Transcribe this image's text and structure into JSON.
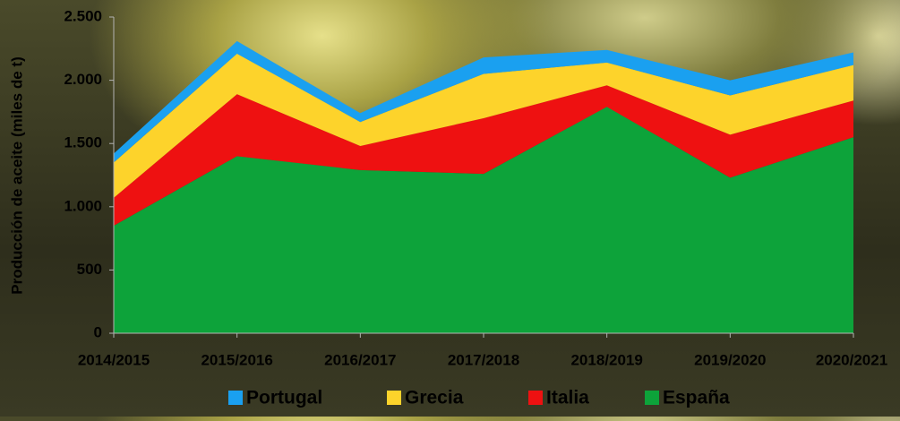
{
  "chart_data": {
    "type": "stacked-area",
    "y_label": "Producción de aceite (miles de t)",
    "categories": [
      "2014/2015",
      "2015/2016",
      "2016/2017",
      "2017/2018",
      "2018/2019",
      "2019/2020",
      "2020/2021"
    ],
    "series": [
      {
        "name": "Portugal",
        "color": "#1aa0f0",
        "values": [
          70,
          100,
          70,
          130,
          100,
          120,
          100
        ]
      },
      {
        "name": "Grecia",
        "color": "#fdd32b",
        "values": [
          280,
          320,
          190,
          350,
          180,
          310,
          280
        ]
      },
      {
        "name": "Italia",
        "color": "#ee1111",
        "values": [
          220,
          490,
          190,
          440,
          170,
          340,
          290
        ]
      },
      {
        "name": "España",
        "color": "#0da33a",
        "values": [
          850,
          1400,
          1290,
          1260,
          1790,
          1230,
          1550
        ]
      }
    ],
    "ylim": [
      0,
      2500
    ],
    "yticks": [
      0,
      500,
      {
        "value": 1000,
        "label": "1.000"
      },
      {
        "value": 1500,
        "label": "1.500"
      },
      {
        "value": 2000,
        "label": "2.000"
      },
      {
        "value": 2500,
        "label": "2.500"
      }
    ],
    "legend": "bottom"
  }
}
